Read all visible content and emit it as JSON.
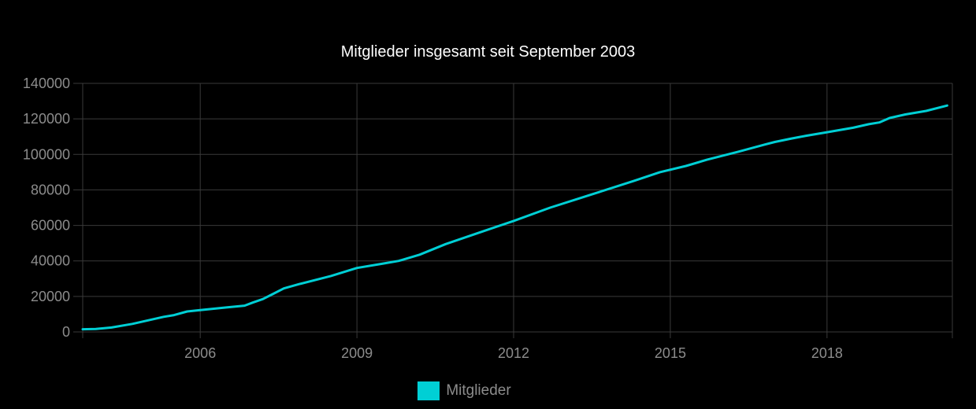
{
  "colors": {
    "background": "#000000",
    "grid": "#3a3a3a",
    "line": "#00cfd5",
    "text": "#8c8c8c",
    "title": "#ffffff"
  },
  "chart_data": {
    "type": "line",
    "title": "Mitglieder insgesamt seit September 2003",
    "xlabel": "",
    "ylabel": "",
    "xlim": [
      2003.75,
      2020.4
    ],
    "ylim": [
      0,
      140000
    ],
    "x_ticks": [
      "2006",
      "2009",
      "2012",
      "2015",
      "2018"
    ],
    "y_ticks": [
      "0",
      "20000",
      "40000",
      "60000",
      "80000",
      "100000",
      "120000",
      "140000"
    ],
    "grid": true,
    "legend_position": "bottom",
    "series": [
      {
        "name": "Mitglieder",
        "color": "#00cfd5",
        "x": [
          2003.75,
          2004.0,
          2004.3,
          2004.7,
          2005.0,
          2005.3,
          2005.5,
          2005.75,
          2006.0,
          2006.5,
          2006.85,
          2007.0,
          2007.2,
          2007.4,
          2007.6,
          2007.9,
          2008.5,
          2009.0,
          2009.5,
          2009.8,
          2010.2,
          2010.7,
          2011.3,
          2012.0,
          2012.7,
          2013.5,
          2014.3,
          2014.8,
          2015.3,
          2015.7,
          2016.3,
          2016.8,
          2017.0,
          2017.3,
          2017.6,
          2018.0,
          2018.5,
          2018.8,
          2019.0,
          2019.2,
          2019.5,
          2019.9,
          2020.3
        ],
        "values": [
          1500,
          1700,
          2500,
          4500,
          6500,
          8500,
          9500,
          11500,
          12300,
          13800,
          14800,
          16500,
          18500,
          21500,
          24500,
          27000,
          31500,
          36000,
          38500,
          40000,
          43500,
          49500,
          55500,
          62500,
          70000,
          77500,
          85000,
          90000,
          93500,
          97000,
          101500,
          105500,
          107000,
          108800,
          110500,
          112500,
          115000,
          117000,
          118000,
          120500,
          122500,
          124500,
          127500
        ]
      }
    ]
  }
}
